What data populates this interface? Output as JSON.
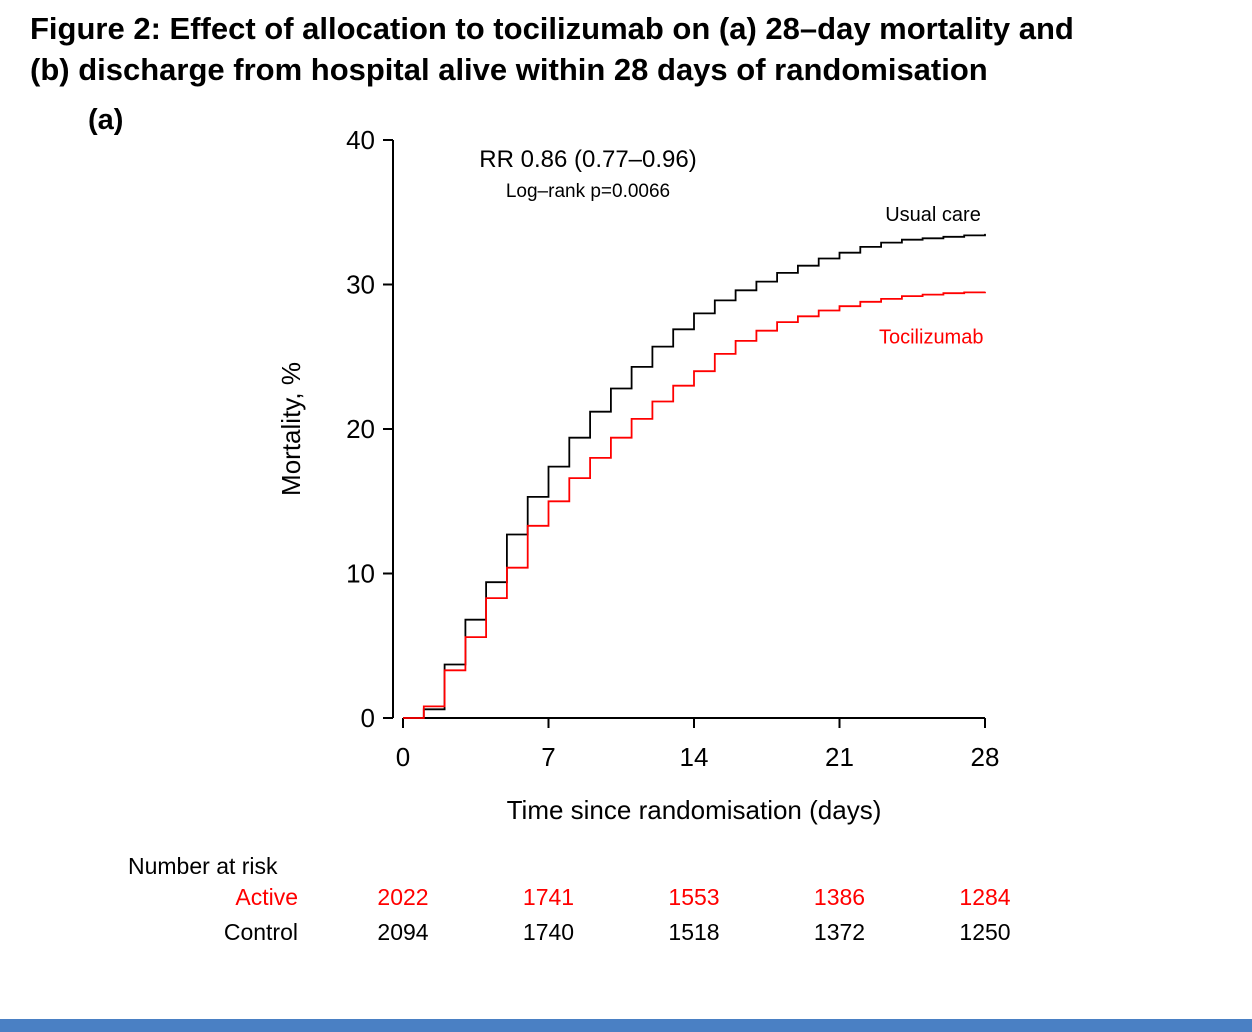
{
  "figure": {
    "title_line1": "Figure 2: Effect of allocation to tocilizumab on (a) 28–day mortality and",
    "title_line2": "(b) discharge from hospital alive within 28 days of randomisation",
    "panel_label": "(a)"
  },
  "chart_data": {
    "type": "line",
    "subtype": "kaplan-meier-step",
    "annotation": {
      "line1": "RR 0.86 (0.77–0.96)",
      "line2": "Log–rank p=0.0066"
    },
    "xlabel": "Time since randomisation (days)",
    "ylabel": "Mortality, %",
    "xlim": [
      0,
      28
    ],
    "ylim": [
      0,
      40
    ],
    "xticks": [
      0,
      7,
      14,
      21,
      28
    ],
    "yticks": [
      0,
      10,
      20,
      30,
      40
    ],
    "grid": false,
    "legend_position": "inline-curve-labels",
    "x": [
      0,
      1,
      2,
      3,
      4,
      5,
      6,
      7,
      8,
      9,
      10,
      11,
      12,
      13,
      14,
      15,
      16,
      17,
      18,
      19,
      20,
      21,
      22,
      23,
      24,
      25,
      26,
      27,
      28
    ],
    "series": [
      {
        "name": "Usual care",
        "color": "#000000",
        "values": [
          0,
          0.6,
          3.7,
          6.8,
          9.4,
          12.7,
          15.3,
          17.4,
          19.4,
          21.2,
          22.8,
          24.3,
          25.7,
          26.9,
          28.0,
          28.9,
          29.6,
          30.2,
          30.8,
          31.3,
          31.8,
          32.2,
          32.6,
          32.9,
          33.1,
          33.2,
          33.3,
          33.4,
          33.5
        ]
      },
      {
        "name": "Tocilizumab",
        "color": "#ff0000",
        "values": [
          0,
          0.8,
          3.3,
          5.6,
          8.3,
          10.4,
          13.3,
          15.0,
          16.6,
          18.0,
          19.4,
          20.7,
          21.9,
          23.0,
          24.0,
          25.2,
          26.1,
          26.8,
          27.4,
          27.8,
          28.2,
          28.5,
          28.8,
          29.0,
          29.2,
          29.3,
          29.4,
          29.45,
          29.5
        ]
      }
    ]
  },
  "risk_table": {
    "heading": "Number at risk",
    "columns": [
      0,
      7,
      14,
      21,
      28
    ],
    "rows": [
      {
        "label": "Active",
        "color": "#ff0000",
        "values": [
          "2022",
          "1741",
          "1553",
          "1386",
          "1284"
        ]
      },
      {
        "label": "Control",
        "color": "#000000",
        "values": [
          "2094",
          "1740",
          "1518",
          "1372",
          "1250"
        ]
      }
    ]
  },
  "footer": {
    "bar_color": "#4a80c4"
  }
}
